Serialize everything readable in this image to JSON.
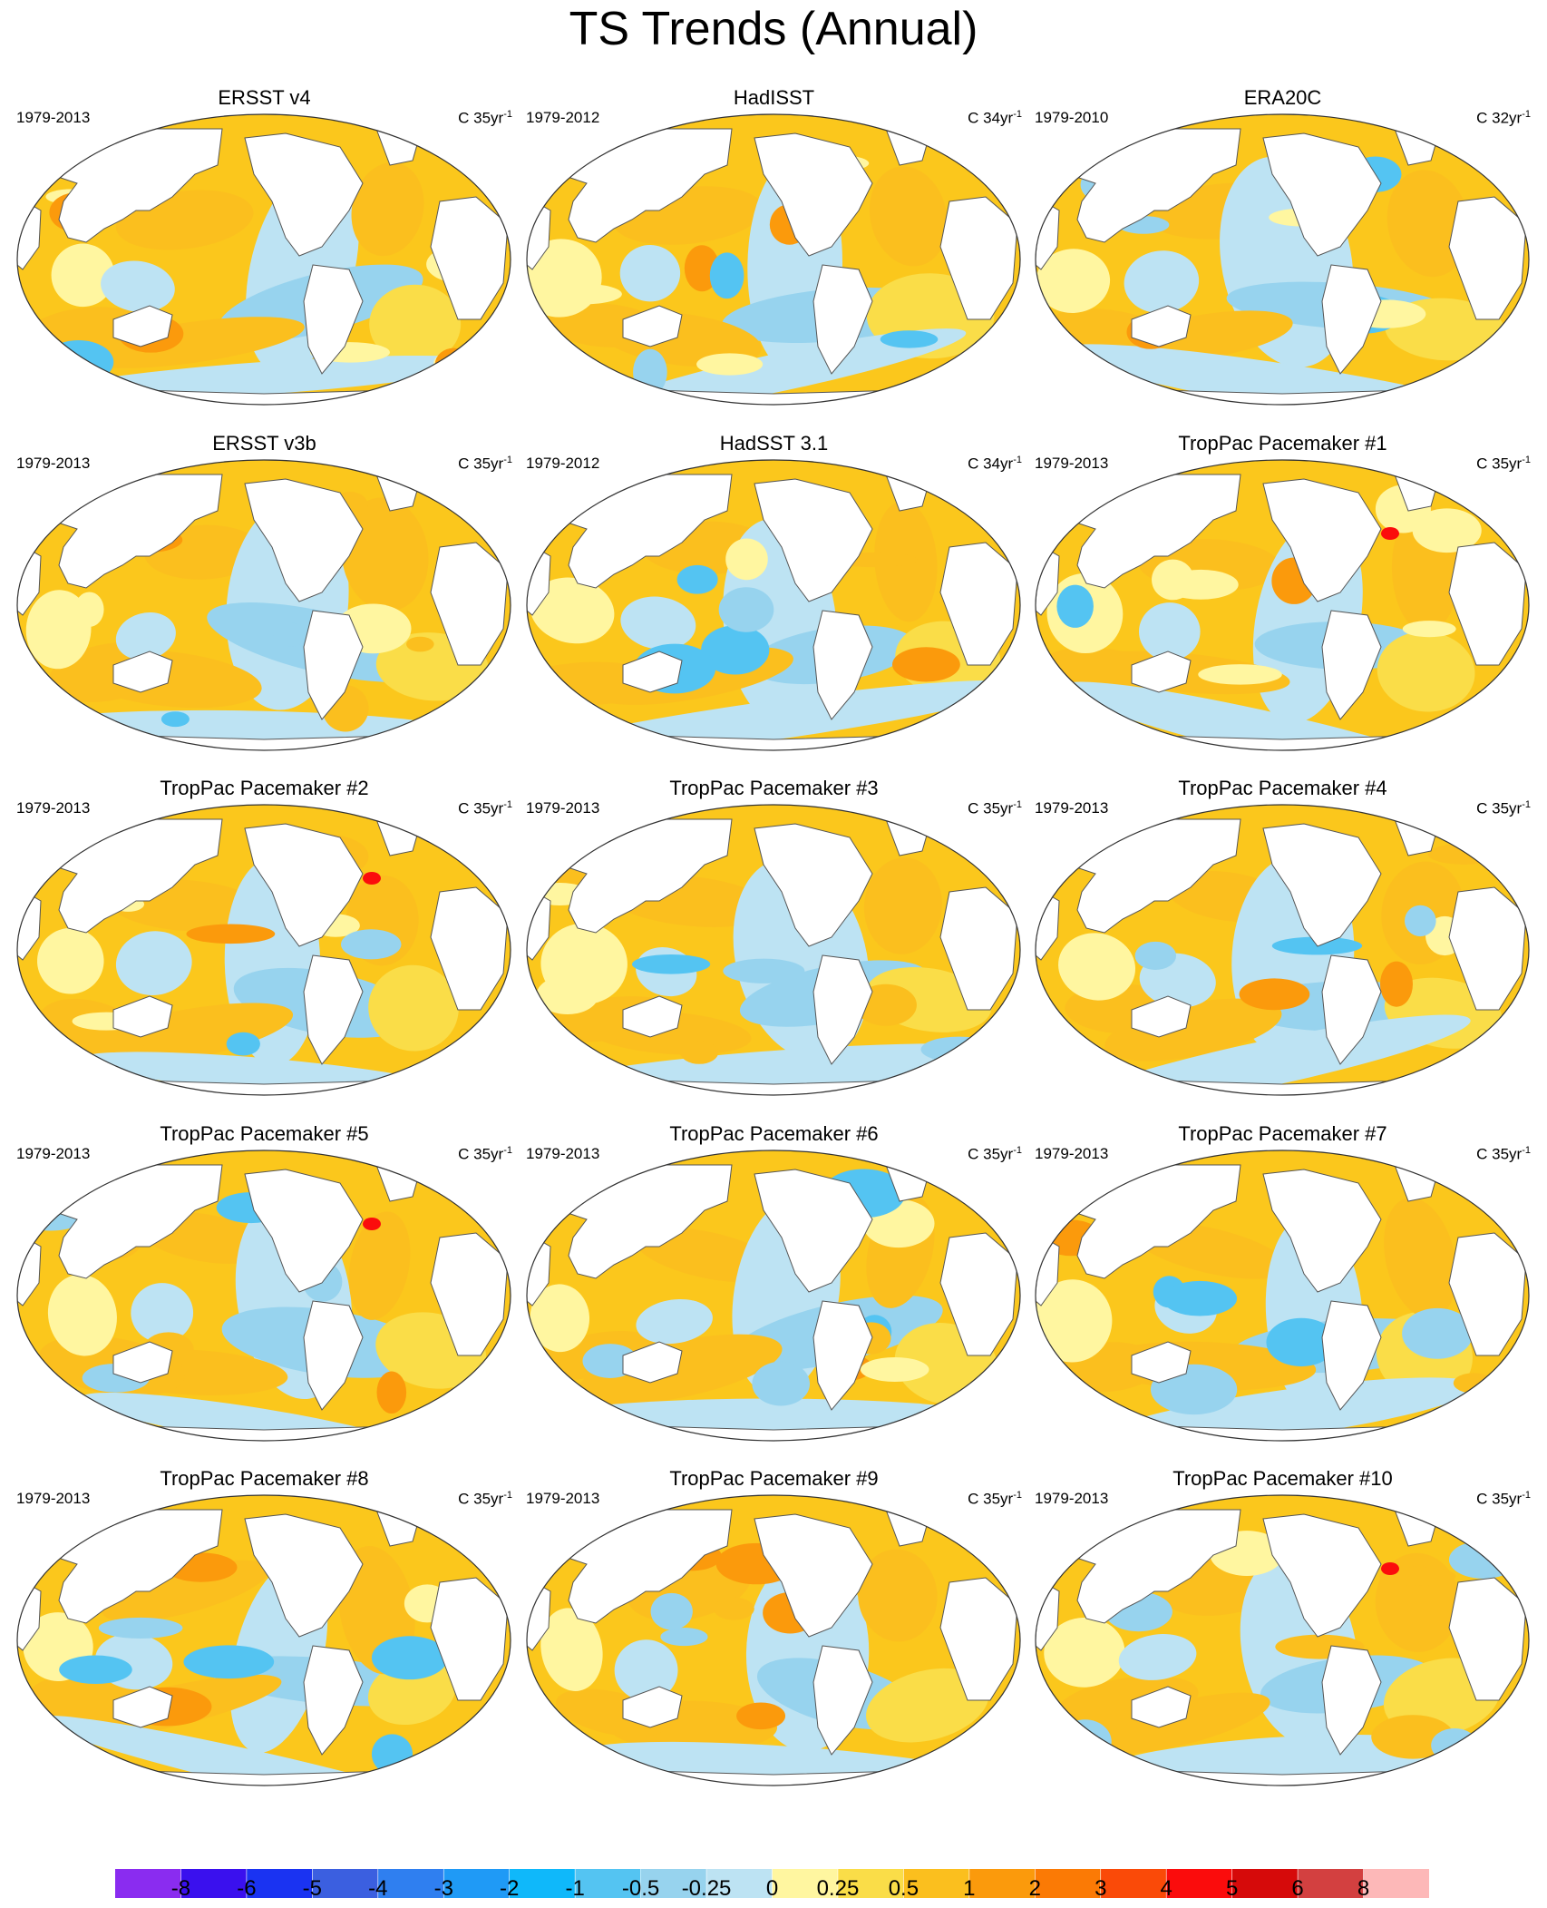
{
  "title": "TS Trends (Annual)",
  "colors": {
    "ocean_base": "#fbc71c",
    "land": "#ffffff",
    "coast": "#555555",
    "levels": [
      "#8a2cf0",
      "#3a10ee",
      "#1a33f2",
      "#3b5fe0",
      "#2f7ff0",
      "#1f9af6",
      "#0fb8fa",
      "#54c4f2",
      "#97d3ee",
      "#bde3f3",
      "#fff6a0",
      "#fadd48",
      "#fbbf1e",
      "#fb9a0c",
      "#fb7a05",
      "#fa4a08",
      "#fb0c0c",
      "#d60a0a",
      "#d34040",
      "#fdb8b8"
    ]
  },
  "panels": [
    {
      "title": "ERSST v4",
      "period": "1979-2013",
      "units": "C 35yr",
      "units_exp": "-1"
    },
    {
      "title": "HadISST",
      "period": "1979-2012",
      "units": "C 34yr",
      "units_exp": "-1"
    },
    {
      "title": "ERA20C",
      "period": "1979-2010",
      "units": "C 32yr",
      "units_exp": "-1"
    },
    {
      "title": "ERSST v3b",
      "period": "1979-2013",
      "units": "C 35yr",
      "units_exp": "-1"
    },
    {
      "title": "HadSST 3.1",
      "period": "1979-2012",
      "units": "C 34yr",
      "units_exp": "-1"
    },
    {
      "title": "TropPac Pacemaker #1",
      "period": "1979-2013",
      "units": "C 35yr",
      "units_exp": "-1"
    },
    {
      "title": "TropPac Pacemaker #2",
      "period": "1979-2013",
      "units": "C 35yr",
      "units_exp": "-1"
    },
    {
      "title": "TropPac Pacemaker #3",
      "period": "1979-2013",
      "units": "C 35yr",
      "units_exp": "-1"
    },
    {
      "title": "TropPac Pacemaker #4",
      "period": "1979-2013",
      "units": "C 35yr",
      "units_exp": "-1"
    },
    {
      "title": "TropPac Pacemaker #5",
      "period": "1979-2013",
      "units": "C 35yr",
      "units_exp": "-1"
    },
    {
      "title": "TropPac Pacemaker #6",
      "period": "1979-2013",
      "units": "C 35yr",
      "units_exp": "-1"
    },
    {
      "title": "TropPac Pacemaker #7",
      "period": "1979-2013",
      "units": "C 35yr",
      "units_exp": "-1"
    },
    {
      "title": "TropPac Pacemaker #8",
      "period": "1979-2013",
      "units": "C 35yr",
      "units_exp": "-1"
    },
    {
      "title": "TropPac Pacemaker #9",
      "period": "1979-2013",
      "units": "C 35yr",
      "units_exp": "-1"
    },
    {
      "title": "TropPac Pacemaker #10",
      "period": "1979-2013",
      "units": "C 35yr",
      "units_exp": "-1"
    }
  ],
  "colorbar": {
    "ticks": [
      "-8",
      "-6",
      "-5",
      "-4",
      "-3",
      "-2",
      "-1",
      "-0.5",
      "-0.25",
      "0",
      "0.25",
      "0.5",
      "1",
      "2",
      "3",
      "4",
      "5",
      "6",
      "8"
    ]
  }
}
